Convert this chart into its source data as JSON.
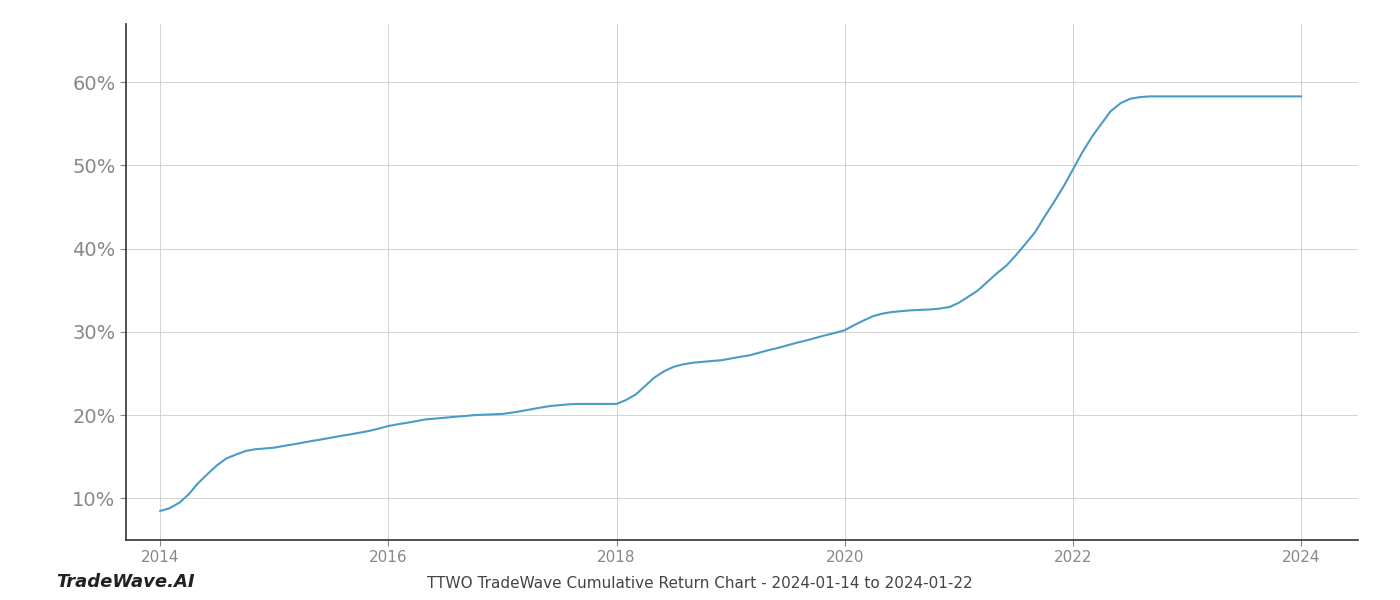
{
  "title": "TTWO TradeWave Cumulative Return Chart - 2024-01-14 to 2024-01-22",
  "watermark": "TradeWave.AI",
  "line_color": "#4a9cc7",
  "background_color": "#ffffff",
  "grid_color": "#cccccc",
  "data_points": [
    [
      2014.0,
      8.5
    ],
    [
      2014.08,
      8.8
    ],
    [
      2014.17,
      9.5
    ],
    [
      2014.25,
      10.5
    ],
    [
      2014.33,
      11.8
    ],
    [
      2014.42,
      13.0
    ],
    [
      2014.5,
      14.0
    ],
    [
      2014.58,
      14.8
    ],
    [
      2014.67,
      15.3
    ],
    [
      2014.75,
      15.7
    ],
    [
      2014.83,
      15.9
    ],
    [
      2014.92,
      16.0
    ],
    [
      2015.0,
      16.1
    ],
    [
      2015.08,
      16.3
    ],
    [
      2015.17,
      16.5
    ],
    [
      2015.25,
      16.7
    ],
    [
      2015.33,
      16.9
    ],
    [
      2015.42,
      17.1
    ],
    [
      2015.5,
      17.3
    ],
    [
      2015.58,
      17.5
    ],
    [
      2015.67,
      17.7
    ],
    [
      2015.75,
      17.9
    ],
    [
      2015.83,
      18.1
    ],
    [
      2015.92,
      18.4
    ],
    [
      2016.0,
      18.7
    ],
    [
      2016.08,
      18.9
    ],
    [
      2016.17,
      19.1
    ],
    [
      2016.25,
      19.3
    ],
    [
      2016.33,
      19.5
    ],
    [
      2016.42,
      19.6
    ],
    [
      2016.5,
      19.7
    ],
    [
      2016.58,
      19.8
    ],
    [
      2016.67,
      19.9
    ],
    [
      2016.75,
      20.0
    ],
    [
      2016.83,
      20.05
    ],
    [
      2016.92,
      20.1
    ],
    [
      2017.0,
      20.15
    ],
    [
      2017.08,
      20.3
    ],
    [
      2017.17,
      20.5
    ],
    [
      2017.25,
      20.7
    ],
    [
      2017.33,
      20.9
    ],
    [
      2017.42,
      21.1
    ],
    [
      2017.5,
      21.2
    ],
    [
      2017.58,
      21.3
    ],
    [
      2017.67,
      21.35
    ],
    [
      2017.75,
      21.35
    ],
    [
      2017.83,
      21.35
    ],
    [
      2017.92,
      21.35
    ],
    [
      2018.0,
      21.35
    ],
    [
      2018.08,
      21.8
    ],
    [
      2018.17,
      22.5
    ],
    [
      2018.25,
      23.5
    ],
    [
      2018.33,
      24.5
    ],
    [
      2018.42,
      25.3
    ],
    [
      2018.5,
      25.8
    ],
    [
      2018.58,
      26.1
    ],
    [
      2018.67,
      26.3
    ],
    [
      2018.75,
      26.4
    ],
    [
      2018.83,
      26.5
    ],
    [
      2018.92,
      26.6
    ],
    [
      2019.0,
      26.8
    ],
    [
      2019.08,
      27.0
    ],
    [
      2019.17,
      27.2
    ],
    [
      2019.25,
      27.5
    ],
    [
      2019.33,
      27.8
    ],
    [
      2019.42,
      28.1
    ],
    [
      2019.5,
      28.4
    ],
    [
      2019.58,
      28.7
    ],
    [
      2019.67,
      29.0
    ],
    [
      2019.75,
      29.3
    ],
    [
      2019.83,
      29.6
    ],
    [
      2019.92,
      29.9
    ],
    [
      2020.0,
      30.2
    ],
    [
      2020.08,
      30.8
    ],
    [
      2020.17,
      31.4
    ],
    [
      2020.25,
      31.9
    ],
    [
      2020.33,
      32.2
    ],
    [
      2020.42,
      32.4
    ],
    [
      2020.5,
      32.5
    ],
    [
      2020.58,
      32.6
    ],
    [
      2020.67,
      32.65
    ],
    [
      2020.75,
      32.7
    ],
    [
      2020.83,
      32.8
    ],
    [
      2020.92,
      33.0
    ],
    [
      2021.0,
      33.5
    ],
    [
      2021.08,
      34.2
    ],
    [
      2021.17,
      35.0
    ],
    [
      2021.25,
      36.0
    ],
    [
      2021.33,
      37.0
    ],
    [
      2021.42,
      38.0
    ],
    [
      2021.5,
      39.2
    ],
    [
      2021.58,
      40.5
    ],
    [
      2021.67,
      42.0
    ],
    [
      2021.75,
      43.8
    ],
    [
      2021.83,
      45.5
    ],
    [
      2021.92,
      47.5
    ],
    [
      2022.0,
      49.5
    ],
    [
      2022.08,
      51.5
    ],
    [
      2022.17,
      53.5
    ],
    [
      2022.25,
      55.0
    ],
    [
      2022.33,
      56.5
    ],
    [
      2022.42,
      57.5
    ],
    [
      2022.5,
      58.0
    ],
    [
      2022.58,
      58.2
    ],
    [
      2022.67,
      58.3
    ],
    [
      2022.75,
      58.3
    ],
    [
      2022.83,
      58.3
    ],
    [
      2022.92,
      58.3
    ],
    [
      2023.0,
      58.3
    ],
    [
      2023.25,
      58.3
    ],
    [
      2023.5,
      58.3
    ],
    [
      2023.75,
      58.3
    ],
    [
      2024.0,
      58.3
    ]
  ],
  "ylim": [
    5,
    67
  ],
  "xlim": [
    2013.7,
    2024.5
  ],
  "yticks": [
    10,
    20,
    30,
    40,
    50,
    60
  ],
  "xticks": [
    2014,
    2016,
    2018,
    2020,
    2022,
    2024
  ],
  "title_fontsize": 11,
  "watermark_fontsize": 13,
  "axis_fontsize": 11,
  "line_width": 1.5,
  "spine_color": "#333333",
  "tick_color": "#888888",
  "label_color": "#888888"
}
